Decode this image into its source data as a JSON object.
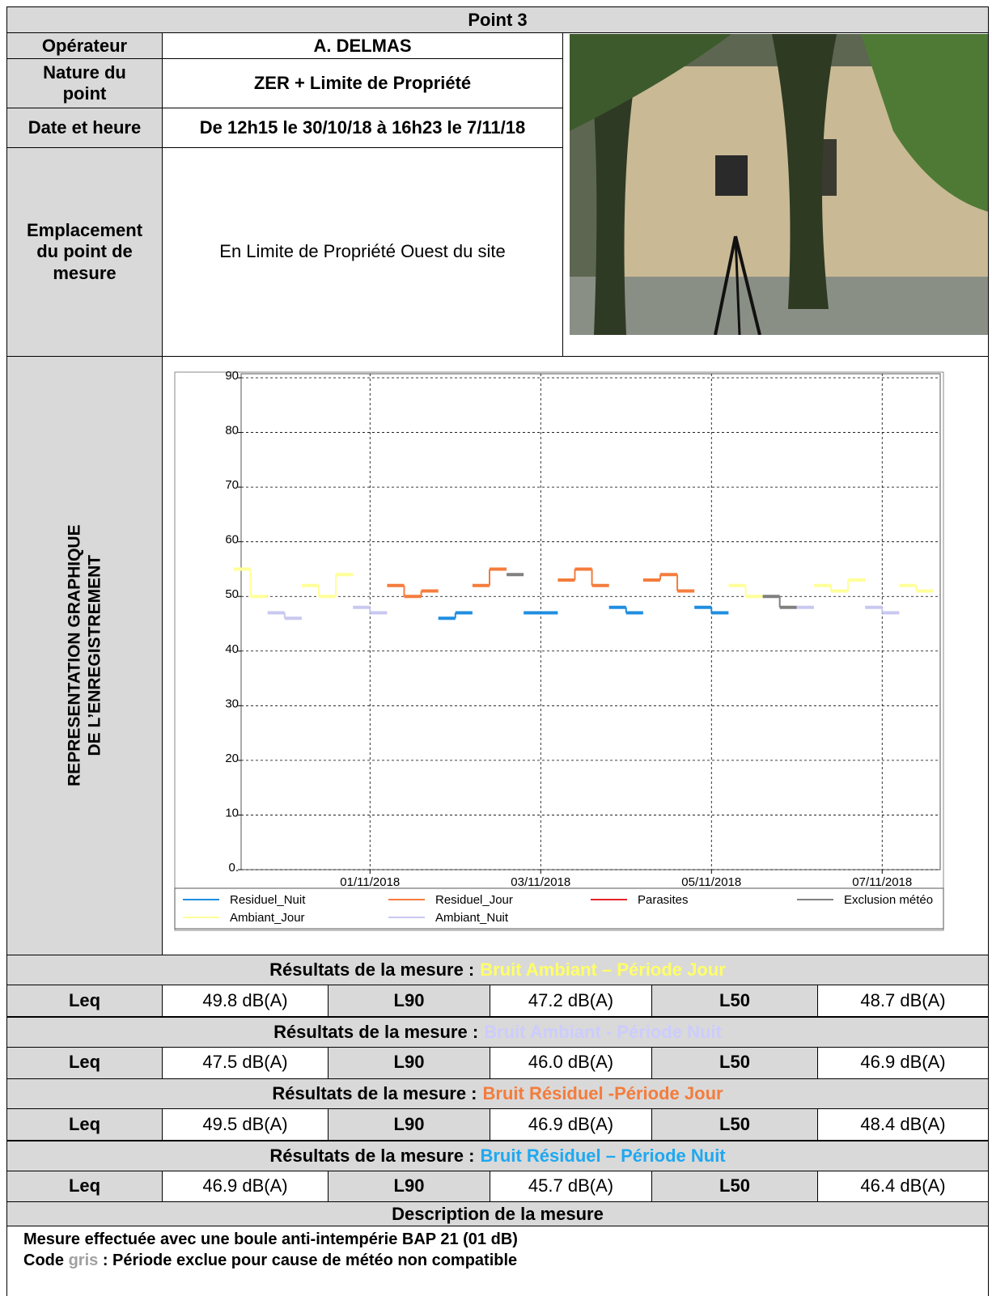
{
  "title": "Point 3",
  "operateur": {
    "label": "Opérateur",
    "value": "A. DELMAS"
  },
  "nature": {
    "label": "Nature du point",
    "value": "ZER + Limite de Propriété"
  },
  "date": {
    "label": "Date et heure",
    "value": "De 12h15 le 30/10/18 à 16h23 le 7/11/18"
  },
  "emplacement": {
    "label": "Emplacement du point de mesure",
    "value": "En Limite de Propriété Ouest du site"
  },
  "graph_label": [
    "REPRESENTATION GRAPHIQUE",
    "DE L’ENREGISTREMENT"
  ],
  "chart_data": {
    "type": "line",
    "x": [
      -0.5,
      -0.3,
      -0.1,
      0.1,
      0.3,
      0.5,
      0.7,
      0.9,
      1.1,
      1.3,
      1.5,
      1.7,
      1.9,
      2.1,
      2.3,
      2.5,
      2.7,
      2.9,
      3.1,
      3.3,
      3.5,
      3.7,
      3.9,
      4.1,
      4.3,
      4.5,
      4.7,
      4.9,
      5.1,
      5.3,
      5.5,
      5.7,
      5.9,
      6.1,
      6.3,
      6.5,
      6.7,
      6.9,
      7.1,
      7.3,
      7.5
    ],
    "xlim": [
      -0.51,
      7.68
    ],
    "xticks": [
      {
        "value": 1,
        "label": "01/11/2018"
      },
      {
        "value": 3,
        "label": "03/11/2018"
      },
      {
        "value": 5,
        "label": "05/11/2018"
      },
      {
        "value": 7,
        "label": "07/11/2018"
      }
    ],
    "ylim": [
      0,
      90
    ],
    "yticks": [
      {
        "value": 0,
        "label": "0."
      },
      10,
      20,
      30,
      40,
      50,
      60,
      70,
      80,
      90
    ],
    "grid": true,
    "series": [
      {
        "name": "Residuel_Nuit",
        "color": "#1f8ee0",
        "values": [
          null,
          null,
          null,
          null,
          null,
          null,
          null,
          null,
          null,
          null,
          null,
          null,
          46,
          47,
          null,
          null,
          null,
          47,
          47,
          null,
          null,
          null,
          48,
          47,
          null,
          null,
          null,
          48,
          47,
          null,
          null,
          null,
          null,
          null,
          null,
          null,
          null,
          null,
          null,
          null,
          null
        ]
      },
      {
        "name": "Residuel_Jour",
        "color": "#f47c3c",
        "values": [
          null,
          null,
          null,
          null,
          null,
          null,
          null,
          null,
          null,
          52,
          50,
          51,
          null,
          null,
          52,
          55,
          null,
          null,
          null,
          53,
          55,
          52,
          null,
          null,
          53,
          54,
          51,
          null,
          null,
          null,
          null,
          null,
          null,
          null,
          null,
          null,
          null,
          null,
          null,
          null,
          null
        ]
      },
      {
        "name": "Parasites",
        "color": "#e8202a",
        "values": [
          null,
          null,
          null,
          null,
          null,
          null,
          null,
          null,
          null,
          null,
          null,
          null,
          null,
          null,
          null,
          null,
          null,
          null,
          null,
          null,
          null,
          null,
          null,
          null,
          null,
          null,
          null,
          null,
          null,
          null,
          null,
          null,
          null,
          null,
          null,
          null,
          null,
          null,
          null,
          null,
          null
        ]
      },
      {
        "name": "Exclusion météo",
        "color": "#808080",
        "values": [
          null,
          null,
          null,
          null,
          null,
          null,
          null,
          null,
          null,
          null,
          null,
          null,
          null,
          null,
          null,
          null,
          54,
          null,
          null,
          null,
          null,
          null,
          null,
          null,
          null,
          null,
          null,
          null,
          null,
          null,
          null,
          50,
          48,
          null,
          null,
          null,
          null,
          null,
          null,
          null,
          null
        ]
      },
      {
        "name": "Ambiant_Jour",
        "color": "#ffff99",
        "values": [
          55,
          50,
          null,
          null,
          52,
          50,
          54,
          null,
          null,
          null,
          null,
          null,
          null,
          null,
          null,
          null,
          null,
          null,
          null,
          null,
          null,
          null,
          null,
          null,
          null,
          null,
          null,
          null,
          null,
          52,
          50,
          null,
          null,
          null,
          52,
          51,
          53,
          null,
          null,
          52,
          51
        ]
      },
      {
        "name": "Ambiant_Nuit",
        "color": "#c8c8f0",
        "values": [
          null,
          null,
          47,
          46,
          null,
          null,
          null,
          48,
          47,
          null,
          null,
          null,
          null,
          null,
          null,
          null,
          null,
          null,
          null,
          null,
          null,
          null,
          null,
          null,
          null,
          null,
          null,
          null,
          null,
          null,
          null,
          null,
          null,
          48,
          null,
          null,
          null,
          48,
          47,
          null,
          null
        ]
      }
    ]
  },
  "results": [
    {
      "prefix": "Résultats de la mesure :",
      "highlight": "Bruit Ambiant – Période Jour",
      "color": "#ffff66",
      "cells": [
        {
          "label": "Leq",
          "value": "49.8 dB(A)"
        },
        {
          "label": "L90",
          "value": "47.2 dB(A)"
        },
        {
          "label": "L50",
          "value": "48.7 dB(A)"
        }
      ]
    },
    {
      "prefix": "Résultats de la mesure :",
      "highlight": "Bruit Ambiant - Période Nuit",
      "color": "#ccccff",
      "cells": [
        {
          "label": "Leq",
          "value": "47.5 dB(A)"
        },
        {
          "label": "L90",
          "value": "46.0 dB(A)"
        },
        {
          "label": "L50",
          "value": "46.9 dB(A)"
        }
      ]
    },
    {
      "prefix": "Résultats de la mesure :",
      "highlight": "Bruit Résiduel -Période Jour",
      "color": "#f47c3c",
      "cells": [
        {
          "label": "Leq",
          "value": "49.5 dB(A)"
        },
        {
          "label": "L90",
          "value": "46.9 dB(A)"
        },
        {
          "label": "L50",
          "value": "48.4 dB(A)"
        }
      ]
    },
    {
      "prefix": "Résultats de la mesure :",
      "highlight": "Bruit Résiduel – Période Nuit",
      "color": "#1fa8f0",
      "cells": [
        {
          "label": "Leq",
          "value": "46.9 dB(A)"
        },
        {
          "label": "L90",
          "value": "45.7 dB(A)"
        },
        {
          "label": "L50",
          "value": "46.4 dB(A)"
        }
      ]
    }
  ],
  "description": {
    "title": "Description de la mesure",
    "line1": "Mesure effectuée avec une boule anti-intempérie BAP 21 (01 dB)",
    "line2": {
      "before": "Code",
      "code": "gris",
      "code_color": "#a0a0a0",
      "after": ": Période exclue pour cause de météo non compatible"
    }
  }
}
